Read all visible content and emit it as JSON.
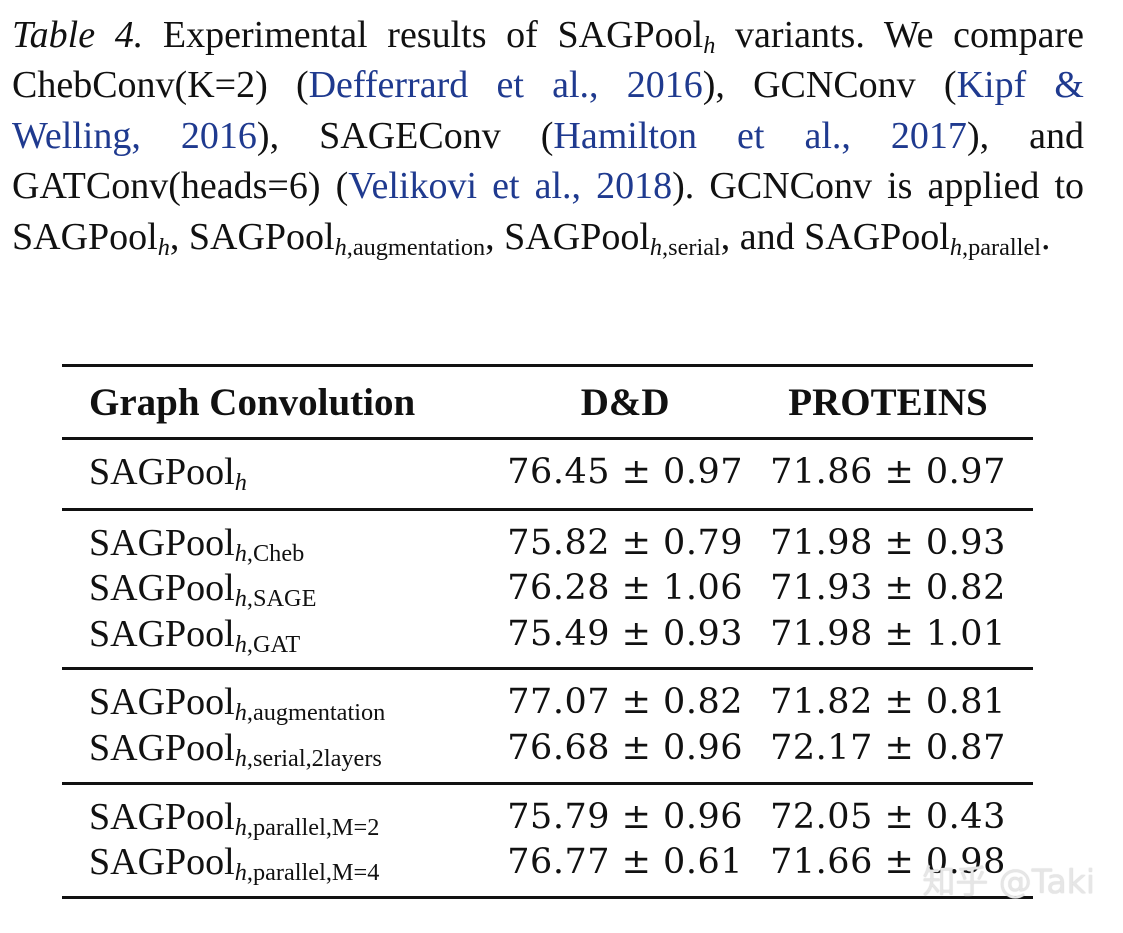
{
  "caption": {
    "label": "Table 4.",
    "t1": " Experimental results of SAGPool",
    "sub_h": "h",
    "t2": " variants.  We compare ChebConv(K=2) (",
    "cite1": "Defferrard et al., 2016",
    "t3": "), GCNConv (",
    "cite2": "Kipf & Welling, 2016",
    "t4": "), SAGEConv (",
    "cite3": "Hamilton et al., 2017",
    "t5": "), and GATConv(heads=6) (",
    "cite4": "Velikovi et al., 2018",
    "t6": ").  GCNConv is applied to SAGPool",
    "t7": ", SAGPool",
    "sub_aug": ",augmentation",
    "t8": ", SAGPool",
    "sub_serial": ",serial",
    "t9": ", and SAGPool",
    "sub_parallel": ",parallel",
    "t10": "."
  },
  "table": {
    "headers": [
      "Graph Convolution",
      "D&D",
      "PROTEINS"
    ],
    "base": "SAGPool",
    "h": "h",
    "groups": [
      [
        {
          "suffix": "",
          "dd": "76.45 ± 0.97",
          "proteins": "71.86 ± 0.97"
        }
      ],
      [
        {
          "suffix": ",Cheb",
          "dd": "75.82 ± 0.79",
          "proteins": "71.98 ± 0.93"
        },
        {
          "suffix": ",SAGE",
          "dd": "76.28 ± 1.06",
          "proteins": "71.93 ± 0.82"
        },
        {
          "suffix": ",GAT",
          "dd": "75.49 ± 0.93",
          "proteins": "71.98 ± 1.01"
        }
      ],
      [
        {
          "suffix": ",augmentation",
          "dd": "77.07 ± 0.82",
          "proteins": "71.82 ± 0.81"
        },
        {
          "suffix": ",serial,2layers",
          "dd": "76.68 ± 0.96",
          "proteins": "72.17 ± 0.87"
        }
      ],
      [
        {
          "suffix": ",parallel,M=2",
          "dd": "75.79 ± 0.96",
          "proteins": "72.05 ± 0.43"
        },
        {
          "suffix": ",parallel,M=4",
          "dd": "76.77 ± 0.61",
          "proteins": "71.66 ± 0.98"
        }
      ]
    ]
  },
  "watermark": "知乎 @Taki"
}
